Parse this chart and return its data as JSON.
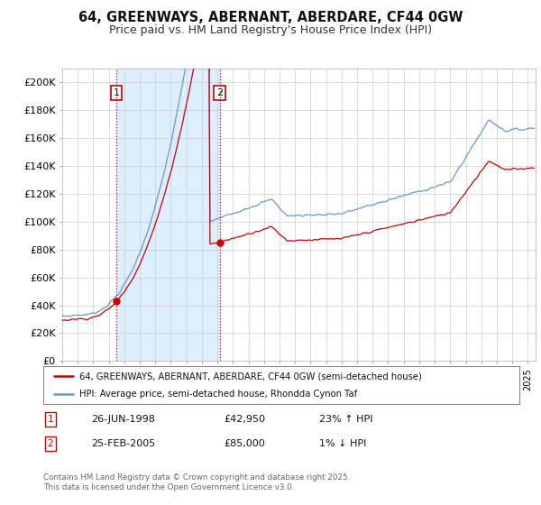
{
  "title": "64, GREENWAYS, ABERNANT, ABERDARE, CF44 0GW",
  "subtitle": "Price paid vs. HM Land Registry's House Price Index (HPI)",
  "ylim": [
    0,
    210000
  ],
  "yticks": [
    0,
    20000,
    40000,
    60000,
    80000,
    100000,
    120000,
    140000,
    160000,
    180000,
    200000
  ],
  "ytick_labels": [
    "£0",
    "£20K",
    "£40K",
    "£60K",
    "£80K",
    "£100K",
    "£120K",
    "£140K",
    "£160K",
    "£180K",
    "£200K"
  ],
  "sale1_year": 1998.48,
  "sale1_price": 42950,
  "sale1_date": "26-JUN-1998",
  "sale1_hpi_pct": "23% ↑ HPI",
  "sale2_year": 2005.14,
  "sale2_price": 85000,
  "sale2_date": "25-FEB-2005",
  "sale2_hpi_pct": "1% ↓ HPI",
  "legend_line1": "64, GREENWAYS, ABERNANT, ABERDARE, CF44 0GW (semi-detached house)",
  "legend_line2": "HPI: Average price, semi-detached house, Rhondda Cynon Taf",
  "footer": "Contains HM Land Registry data © Crown copyright and database right 2025.\nThis data is licensed under the Open Government Licence v3.0.",
  "price_line_color": "#cc0000",
  "hpi_line_color": "#6699cc",
  "shade_color": "#ddeeff",
  "vline_color": "#cc0000",
  "background_color": "#ffffff",
  "grid_color": "#cccccc"
}
